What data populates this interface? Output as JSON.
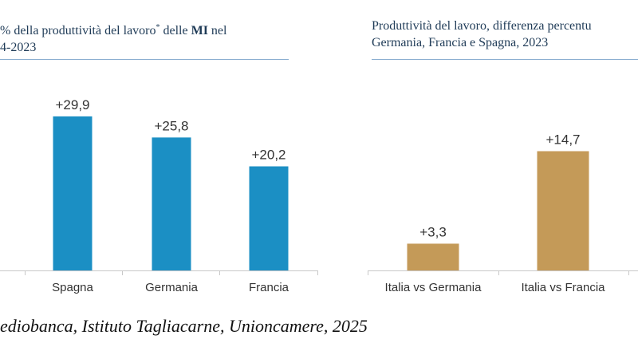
{
  "charts": [
    {
      "title_line1_pre": "% della produttività del lavoro",
      "title_star": "*",
      "title_line1_mid": " delle ",
      "title_line1_bold": "MI",
      "title_line1_post": " nel",
      "title_line2": "4-2023"
    },
    {
      "title_line1": "Produttività del lavoro, differenza percentu",
      "title_line2": "Germania, Francia e Spagna, 2023"
    }
  ],
  "chart_data": [
    {
      "type": "bar",
      "title": "% della produttività del lavoro* delle MI nel 4-2023",
      "categories": [
        "Spagna",
        "Germania",
        "Francia"
      ],
      "values": [
        29.9,
        25.8,
        20.2
      ],
      "value_labels": [
        "+29,9",
        "+25,8",
        "+20,2"
      ],
      "color": "#1b8fc4",
      "ylim": [
        0,
        37
      ],
      "grid": false
    },
    {
      "type": "bar",
      "title": "Produttività del lavoro, differenza percentu Germania, Francia e Spagna, 2023",
      "categories": [
        "Italia vs Germania",
        "Italia vs Francia"
      ],
      "values": [
        3.3,
        14.7
      ],
      "value_labels": [
        "+3,3",
        "+14,7"
      ],
      "color": "#c49a58",
      "ylim": [
        0,
        23.5
      ],
      "grid": false
    }
  ],
  "source": "ediobanca, Istituto Tagliacarne, Unioncamere, 2025",
  "colors": {
    "title": "#1f3b57",
    "rule": "#8aaed0",
    "axis": "#c8c8c8",
    "label": "#333333"
  }
}
